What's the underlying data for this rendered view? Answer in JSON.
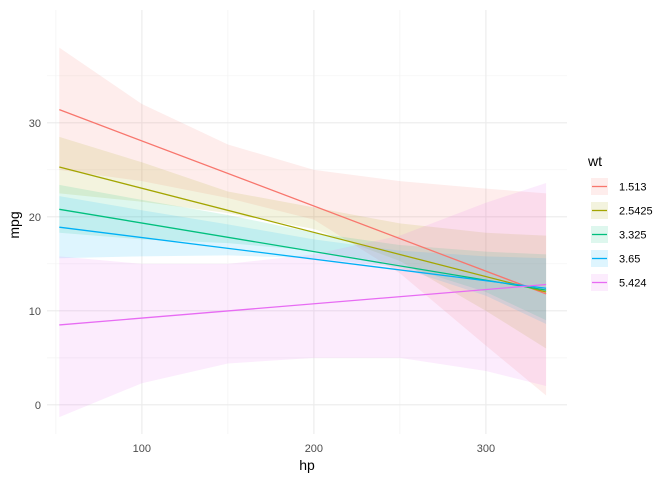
{
  "chart_data": {
    "type": "line",
    "xlabel": "hp",
    "ylabel": "mpg",
    "x_ticks": [
      100,
      200,
      300
    ],
    "y_ticks": [
      0,
      10,
      20,
      30
    ],
    "xlim": [
      44.85,
      347.15
    ],
    "ylim": [
      -3.1,
      42.0
    ],
    "grid": true,
    "legend_title": "wt",
    "legend_position": "right",
    "series": [
      {
        "name": "1.513",
        "color": "#F8766D",
        "x": [
          52,
          335
        ],
        "y": [
          31.4,
          11.8
        ],
        "band_x": [
          52,
          100,
          150,
          200,
          250,
          300,
          335
        ],
        "band_lower": [
          25.0,
          23.8,
          22.0,
          19.7,
          14.0,
          6.3,
          1.0
        ],
        "band_upper": [
          38.0,
          32.0,
          27.7,
          25.0,
          23.8,
          23.0,
          22.5
        ]
      },
      {
        "name": "2.5425",
        "color": "#A3A500",
        "x": [
          52,
          335
        ],
        "y": [
          25.3,
          12.0
        ],
        "band_x": [
          52,
          100,
          150,
          200,
          250,
          300,
          335
        ],
        "band_lower": [
          22.5,
          21.6,
          20.4,
          18.7,
          15.3,
          10.0,
          6.0
        ],
        "band_upper": [
          28.5,
          25.8,
          22.7,
          21.0,
          19.3,
          18.3,
          18.0
        ]
      },
      {
        "name": "3.325",
        "color": "#00BF7D",
        "x": [
          52,
          335
        ],
        "y": [
          20.8,
          12.2
        ],
        "band_x": [
          52,
          100,
          150,
          200,
          250,
          300,
          335
        ],
        "band_lower": [
          18.3,
          17.6,
          17.2,
          16.4,
          14.9,
          12.0,
          9.0
        ],
        "band_upper": [
          23.4,
          21.8,
          20.2,
          18.3,
          17.0,
          16.3,
          16.0
        ]
      },
      {
        "name": "3.65",
        "color": "#00B0F6",
        "x": [
          52,
          335
        ],
        "y": [
          18.9,
          12.4
        ],
        "band_x": [
          52,
          100,
          150,
          200,
          250,
          300,
          335
        ],
        "band_lower": [
          15.6,
          15.8,
          15.9,
          15.6,
          14.6,
          11.6,
          8.6
        ],
        "band_upper": [
          22.2,
          20.7,
          19.2,
          17.6,
          16.4,
          15.8,
          15.6
        ]
      },
      {
        "name": "5.424",
        "color": "#E76BF3",
        "x": [
          52,
          335
        ],
        "y": [
          8.5,
          12.8
        ],
        "band_x": [
          52,
          100,
          150,
          200,
          250,
          300,
          335
        ],
        "band_lower": [
          -1.3,
          2.3,
          4.4,
          5.0,
          5.0,
          3.6,
          2.0
        ],
        "band_upper": [
          15.8,
          15.0,
          15.0,
          16.0,
          18.0,
          21.5,
          23.6
        ]
      }
    ]
  }
}
